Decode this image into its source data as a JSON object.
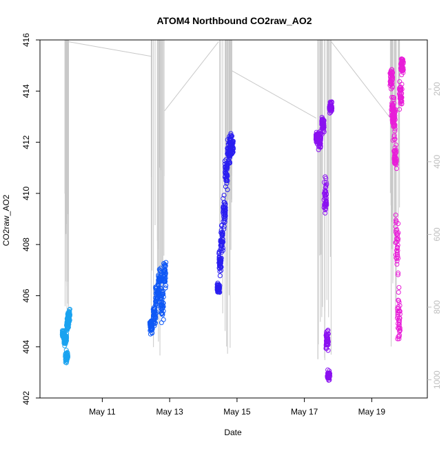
{
  "chart_data": {
    "type": "scatter",
    "title": "ATOM4 Northbound CO2raw_AO2",
    "xlabel": "Date",
    "ylabel": "CO2raw_AO2",
    "x_unit": "day of May",
    "xlim": [
      9.15,
      20.65
    ],
    "ylim": [
      402,
      416
    ],
    "x_ticks": [
      11,
      13,
      15,
      17,
      19
    ],
    "x_tick_labels": [
      "May 11",
      "May 13",
      "May 15",
      "May 17",
      "May 19"
    ],
    "y_ticks": [
      402,
      404,
      406,
      408,
      410,
      412,
      414,
      416
    ],
    "y_tick_labels": [
      "402",
      "404",
      "406",
      "408",
      "410",
      "412",
      "414",
      "416"
    ],
    "y2_ticks": [
      200,
      400,
      600,
      800,
      1000
    ],
    "y2_tick_labels": [
      "200",
      "400",
      "600",
      "800",
      "1000"
    ],
    "y2lim": [
      65,
      1050
    ],
    "grid": false,
    "legend": "none",
    "colors": {
      "flight1": "#1aa3f0",
      "flight2": "#0f58f5",
      "flight3": "#2a1ef0",
      "flight4": "#8a10f0",
      "flight5": "#e81ed8",
      "altitude_line": "#c8c8c8"
    },
    "series": [
      {
        "day_min": 9.85,
        "day_max": 10.0,
        "bands": [
          [
            9.85,
            404.5,
            0.25
          ],
          [
            9.9,
            404.3,
            0.3
          ],
          [
            9.94,
            403.6,
            0.3
          ],
          [
            9.97,
            404.9,
            0.3
          ],
          [
            10.0,
            405.2,
            0.4
          ]
        ],
        "color": "flight1"
      },
      {
        "day_min": 12.45,
        "day_max": 12.85,
        "bands": [
          [
            12.45,
            404.8,
            0.4
          ],
          [
            12.55,
            405.2,
            0.5
          ],
          [
            12.62,
            406.0,
            0.8
          ],
          [
            12.7,
            406.6,
            0.9
          ],
          [
            12.78,
            405.7,
            0.9
          ],
          [
            12.85,
            406.8,
            0.9
          ]
        ],
        "color": "flight2"
      },
      {
        "day_min": 14.45,
        "day_max": 14.85,
        "bands": [
          [
            14.45,
            406.3,
            0.3
          ],
          [
            14.5,
            407.3,
            0.6
          ],
          [
            14.55,
            408.2,
            0.8
          ],
          [
            14.62,
            409.4,
            0.9
          ],
          [
            14.68,
            410.8,
            0.9
          ],
          [
            14.75,
            411.6,
            0.7
          ],
          [
            14.8,
            411.9,
            0.6
          ],
          [
            14.85,
            411.8,
            0.6
          ]
        ],
        "color": "flight3"
      },
      {
        "day_min": 17.35,
        "day_max": 17.8,
        "bands": [
          [
            17.38,
            412.2,
            0.35
          ],
          [
            17.45,
            412.1,
            0.45
          ],
          [
            17.55,
            412.7,
            0.5
          ],
          [
            17.62,
            409.8,
            1.1
          ],
          [
            17.68,
            404.3,
            0.6
          ],
          [
            17.72,
            402.9,
            0.3
          ],
          [
            17.78,
            413.4,
            0.35
          ]
        ],
        "color": "flight4"
      },
      {
        "day_min": 19.55,
        "day_max": 19.9,
        "bands": [
          [
            19.58,
            414.5,
            0.6
          ],
          [
            19.62,
            413.2,
            0.8
          ],
          [
            19.66,
            412.9,
            0.9
          ],
          [
            19.7,
            411.5,
            1.0
          ],
          [
            19.75,
            408.0,
            1.5
          ],
          [
            19.8,
            405.2,
            1.4
          ],
          [
            19.86,
            413.9,
            0.8
          ],
          [
            19.9,
            415.0,
            0.5
          ]
        ],
        "color": "flight5"
      }
    ]
  }
}
